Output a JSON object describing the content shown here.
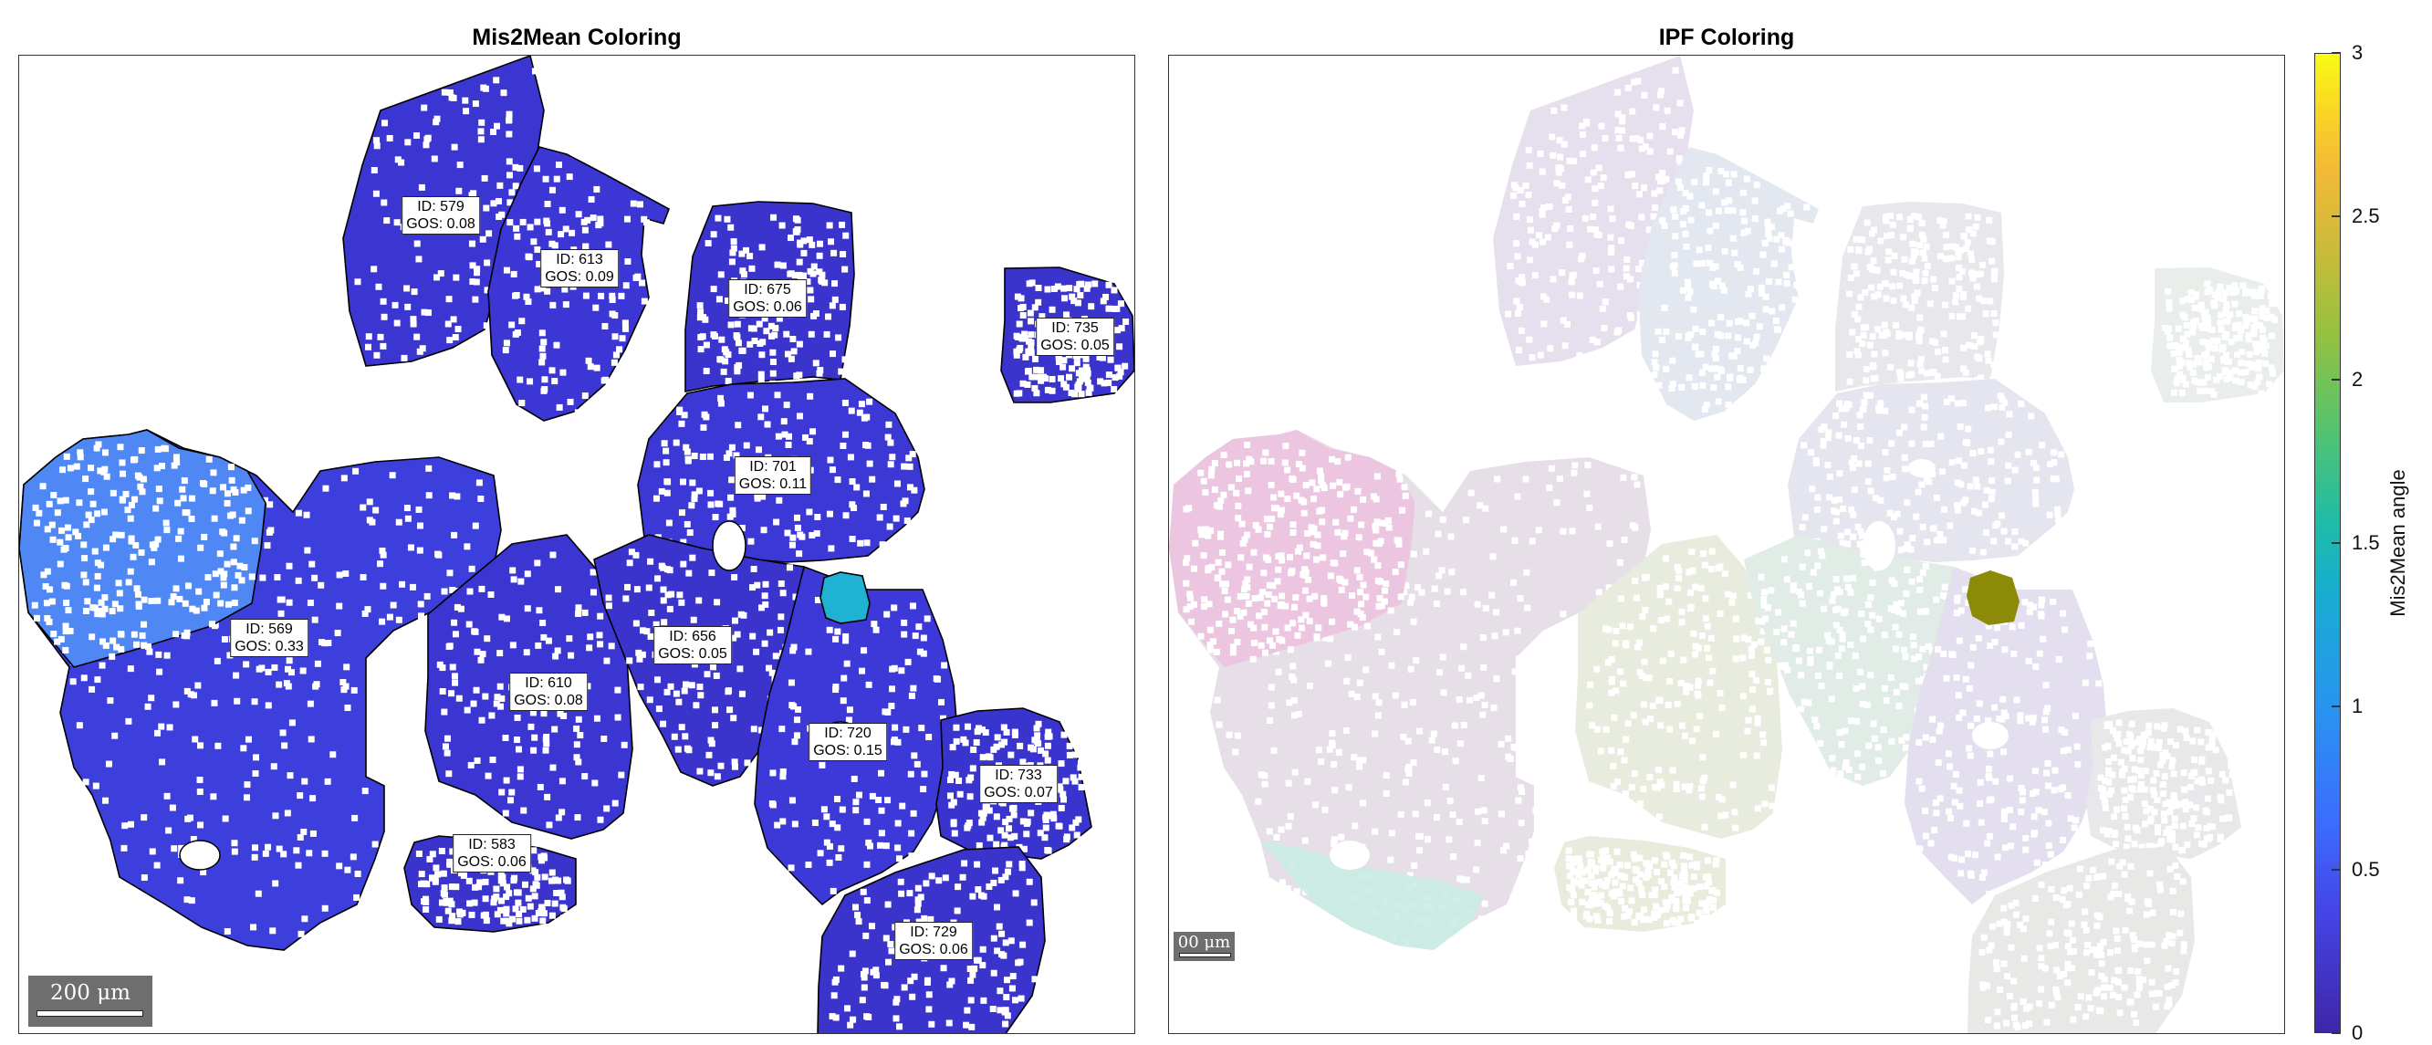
{
  "chart_data": [
    {
      "type": "heatmap",
      "title": "Mis2Mean Coloring",
      "color_scale": "parula",
      "boundary_color": "#000000",
      "grains": [
        {
          "id_label": "ID: 579",
          "gos_label": "GOS: 0.08",
          "color": "#3b35d2"
        },
        {
          "id_label": "ID: 613",
          "gos_label": "GOS: 0.09",
          "color": "#3b36d4"
        },
        {
          "id_label": "ID: 675",
          "gos_label": "GOS: 0.06",
          "color": "#3a33cc"
        },
        {
          "id_label": "ID: 735",
          "gos_label": "GOS: 0.05",
          "color": "#3a33cc"
        },
        {
          "id_label": "ID: 701",
          "gos_label": "GOS: 0.11",
          "color": "#3c38d6"
        },
        {
          "id_label": "ID: 569",
          "gos_label": "GOS: 0.33",
          "color": "#3d3fdc"
        },
        {
          "id_label": "ID: 610",
          "gos_label": "GOS: 0.08",
          "color": "#3b35d2"
        },
        {
          "id_label": "ID: 656",
          "gos_label": "GOS: 0.05",
          "color": "#3a33cc"
        },
        {
          "id_label": "ID: 720",
          "gos_label": "GOS: 0.15",
          "color": "#3c39d8"
        },
        {
          "id_label": "ID: 733",
          "gos_label": "GOS: 0.07",
          "color": "#3a34ce"
        },
        {
          "id_label": "ID: 583",
          "gos_label": "GOS: 0.06",
          "color": "#3a33cc"
        },
        {
          "id_label": "ID: 729",
          "gos_label": "GOS: 0.06",
          "color": "#3a33cc"
        }
      ],
      "highlight_region_color": "#4f88f5",
      "anomaly_region_color": "#1fb2d3",
      "scalebar_label": "200 μm"
    },
    {
      "type": "heatmap",
      "title": "IPF Coloring",
      "scalebar_label": "00 μm",
      "anomaly_region_color": "#8b8b07"
    }
  ],
  "colorbar": {
    "label": "Mis2Mean angle",
    "ticks": [
      "0",
      "0.5",
      "1",
      "1.5",
      "2",
      "2.5",
      "3"
    ],
    "range": [
      0,
      3
    ]
  }
}
